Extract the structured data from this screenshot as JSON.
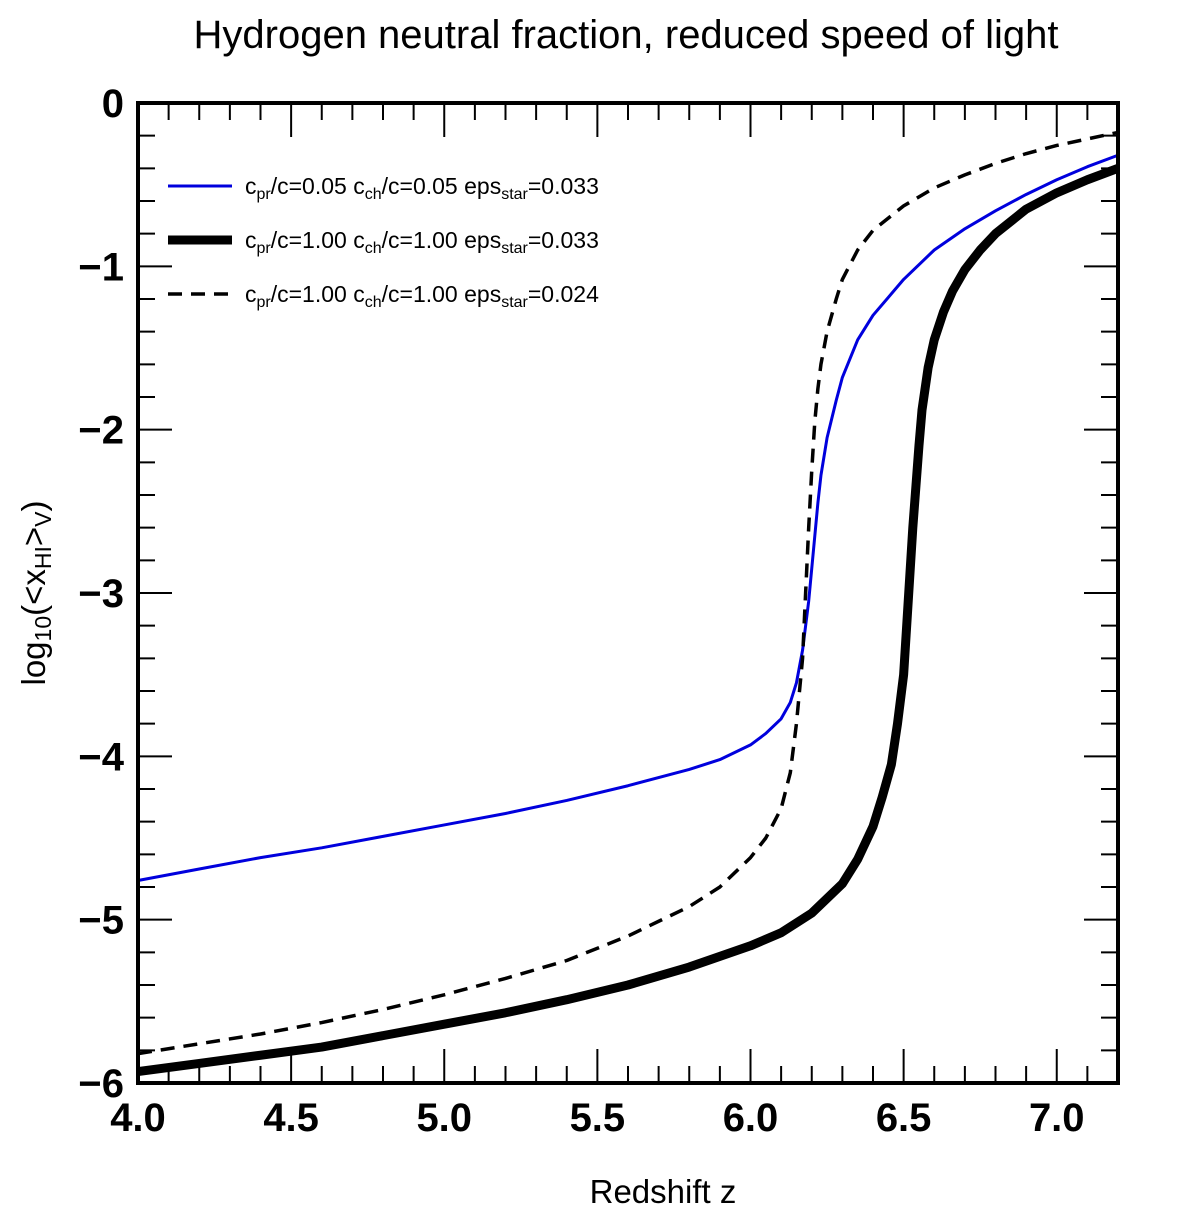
{
  "chart_data": {
    "type": "line",
    "title": "Hydrogen neutral fraction, reduced speed of light",
    "xlabel": "Redshift z",
    "ylabel": {
      "prefix": "log",
      "prefix_sub": "10",
      "open": "(<x",
      "sub": "HI",
      "mid": ">",
      "sub2": "V",
      "close": ")"
    },
    "xlim": [
      4.0,
      7.2
    ],
    "ylim": [
      -6,
      0
    ],
    "x_ticks": [
      4.0,
      4.5,
      5.0,
      5.5,
      6.0,
      6.5,
      7.0
    ],
    "x_tick_labels": [
      "4.0",
      "4.5",
      "5.0",
      "5.5",
      "6.0",
      "6.5",
      "7.0"
    ],
    "y_ticks": [
      0,
      -1,
      -2,
      -3,
      -4,
      -5,
      -6
    ],
    "y_tick_labels": [
      "0",
      "−1",
      "−2",
      "−3",
      "−4",
      "−5",
      "−6"
    ],
    "x_minor_step": 0.1,
    "y_minor_step": 0.2,
    "legend_position": "top-left",
    "series": [
      {
        "name": "blue-thin",
        "style": "solid",
        "color": "#0000dd",
        "width": "thin",
        "legend": {
          "a": "c",
          "a_sub": "pr",
          "a_val": "/c=0.05",
          "b": "c",
          "b_sub": "ch",
          "b_val": "/c=0.05",
          "c": "eps",
          "c_sub": "star",
          "c_val": "=0.033"
        },
        "x": [
          4.0,
          4.2,
          4.4,
          4.6,
          4.8,
          5.0,
          5.2,
          5.4,
          5.6,
          5.8,
          5.9,
          6.0,
          6.05,
          6.1,
          6.13,
          6.15,
          6.17,
          6.19,
          6.2,
          6.21,
          6.22,
          6.23,
          6.25,
          6.28,
          6.3,
          6.35,
          6.4,
          6.5,
          6.6,
          6.7,
          6.8,
          6.9,
          7.0,
          7.1,
          7.2
        ],
        "y": [
          -4.76,
          -4.69,
          -4.62,
          -4.56,
          -4.49,
          -4.42,
          -4.35,
          -4.27,
          -4.18,
          -4.08,
          -4.02,
          -3.93,
          -3.86,
          -3.77,
          -3.67,
          -3.55,
          -3.35,
          -3.05,
          -2.85,
          -2.65,
          -2.45,
          -2.28,
          -2.05,
          -1.82,
          -1.68,
          -1.45,
          -1.3,
          -1.08,
          -0.9,
          -0.77,
          -0.66,
          -0.56,
          -0.47,
          -0.39,
          -0.32
        ]
      },
      {
        "name": "black-thick",
        "style": "solid",
        "color": "#000000",
        "width": "thick",
        "legend": {
          "a": "c",
          "a_sub": "pr",
          "a_val": "/c=1.00",
          "b": "c",
          "b_sub": "ch",
          "b_val": "/c=1.00",
          "c": "eps",
          "c_sub": "star",
          "c_val": "=0.033"
        },
        "x": [
          4.0,
          4.2,
          4.4,
          4.6,
          4.8,
          5.0,
          5.2,
          5.4,
          5.6,
          5.8,
          6.0,
          6.1,
          6.2,
          6.3,
          6.35,
          6.4,
          6.43,
          6.46,
          6.48,
          6.5,
          6.51,
          6.52,
          6.53,
          6.54,
          6.55,
          6.56,
          6.58,
          6.6,
          6.63,
          6.66,
          6.7,
          6.75,
          6.8,
          6.9,
          7.0,
          7.1,
          7.2
        ],
        "y": [
          -5.93,
          -5.88,
          -5.83,
          -5.78,
          -5.71,
          -5.64,
          -5.57,
          -5.49,
          -5.4,
          -5.29,
          -5.16,
          -5.08,
          -4.96,
          -4.78,
          -4.63,
          -4.43,
          -4.25,
          -4.05,
          -3.8,
          -3.5,
          -3.2,
          -2.9,
          -2.6,
          -2.35,
          -2.1,
          -1.88,
          -1.62,
          -1.45,
          -1.28,
          -1.15,
          -1.02,
          -0.9,
          -0.8,
          -0.65,
          -0.55,
          -0.47,
          -0.4
        ]
      },
      {
        "name": "black-dashed",
        "style": "dashed",
        "color": "#000000",
        "width": "medium",
        "legend": {
          "a": "c",
          "a_sub": "pr",
          "a_val": "/c=1.00",
          "b": "c",
          "b_sub": "ch",
          "b_val": "/c=1.00",
          "c": "eps",
          "c_sub": "star",
          "c_val": "=0.024"
        },
        "x": [
          4.0,
          4.2,
          4.4,
          4.6,
          4.8,
          5.0,
          5.2,
          5.4,
          5.6,
          5.8,
          5.9,
          6.0,
          6.05,
          6.1,
          6.13,
          6.15,
          6.17,
          6.18,
          6.19,
          6.2,
          6.21,
          6.22,
          6.23,
          6.25,
          6.28,
          6.3,
          6.35,
          6.4,
          6.5,
          6.6,
          6.7,
          6.8,
          6.9,
          7.0,
          7.1,
          7.2
        ],
        "y": [
          -5.82,
          -5.76,
          -5.7,
          -5.63,
          -5.55,
          -5.46,
          -5.36,
          -5.25,
          -5.1,
          -4.92,
          -4.8,
          -4.62,
          -4.5,
          -4.32,
          -4.1,
          -3.8,
          -3.4,
          -3.0,
          -2.6,
          -2.25,
          -1.95,
          -1.75,
          -1.6,
          -1.4,
          -1.2,
          -1.08,
          -0.9,
          -0.78,
          -0.63,
          -0.52,
          -0.44,
          -0.37,
          -0.31,
          -0.26,
          -0.22,
          -0.18
        ]
      }
    ]
  }
}
